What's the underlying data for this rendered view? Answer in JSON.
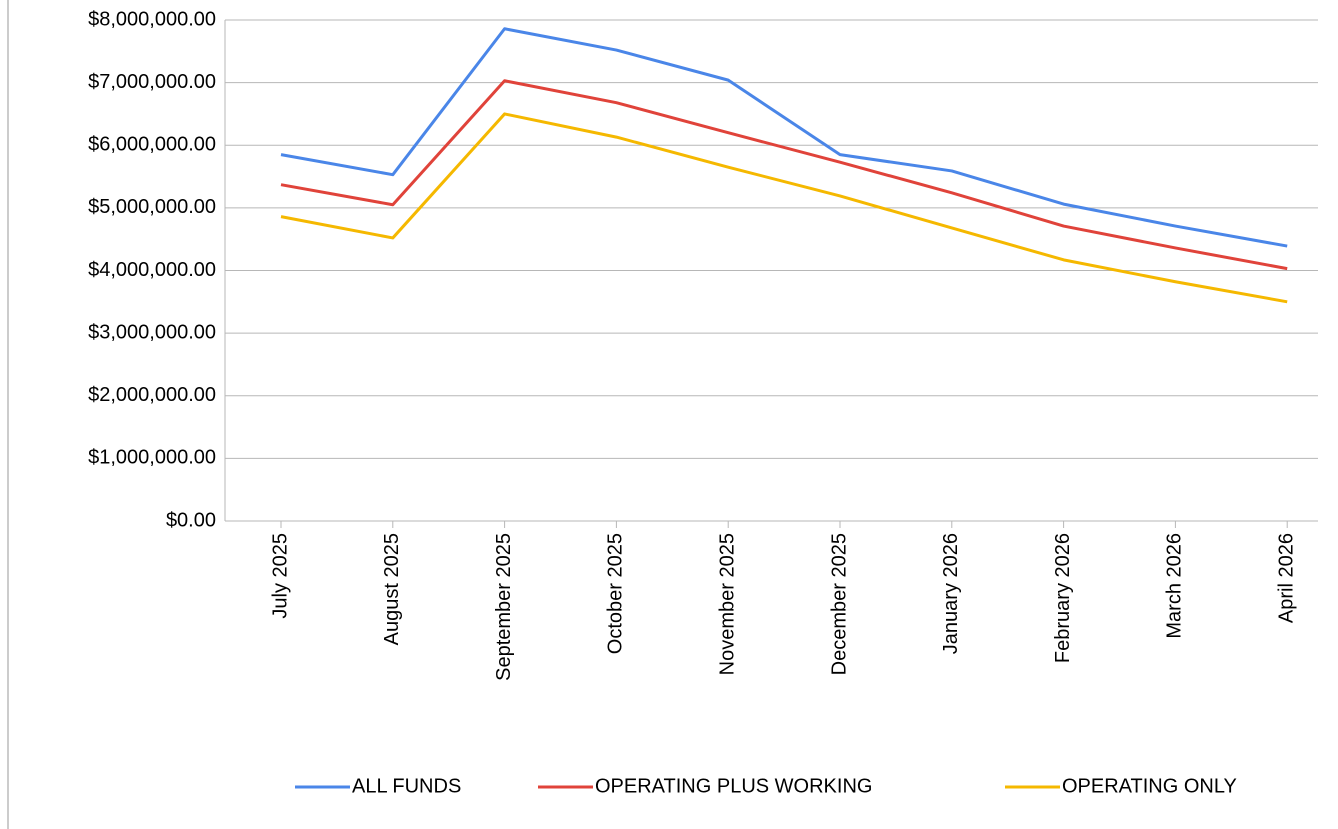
{
  "chart_data": {
    "type": "line",
    "categories": [
      "July 2025",
      "August 2025",
      "September 2025",
      "October 2025",
      "November 2025",
      "December 2025",
      "January 2026",
      "February 2026",
      "March 2026",
      "April 2026"
    ],
    "series": [
      {
        "name": "ALL FUNDS",
        "color": "#4a86e8",
        "values": [
          5850000,
          5530000,
          7860000,
          7520000,
          7040000,
          5850000,
          5590000,
          5060000,
          4710000,
          4390000
        ]
      },
      {
        "name": "OPERATING PLUS WORKING",
        "color": "#e0433a",
        "values": [
          5370000,
          5050000,
          7030000,
          6680000,
          6200000,
          5730000,
          5240000,
          4710000,
          4360000,
          4030000
        ]
      },
      {
        "name": "OPERATING ONLY",
        "color": "#f5b800",
        "values": [
          4860000,
          4520000,
          6500000,
          6130000,
          5650000,
          5190000,
          4680000,
          4170000,
          3820000,
          3500000
        ]
      }
    ],
    "ylim": [
      0,
      8000000
    ],
    "yticks": [
      {
        "value": 0,
        "label": "$0.00"
      },
      {
        "value": 1000000,
        "label": "$1,000,000.00"
      },
      {
        "value": 2000000,
        "label": "$2,000,000.00"
      },
      {
        "value": 3000000,
        "label": "$3,000,000.00"
      },
      {
        "value": 4000000,
        "label": "$4,000,000.00"
      },
      {
        "value": 5000000,
        "label": "$5,000,000.00"
      },
      {
        "value": 6000000,
        "label": "$6,000,000.00"
      },
      {
        "value": 7000000,
        "label": "$7,000,000.00"
      },
      {
        "value": 8000000,
        "label": "$8,000,000.00"
      }
    ],
    "grid": true,
    "legend": "bottom"
  }
}
